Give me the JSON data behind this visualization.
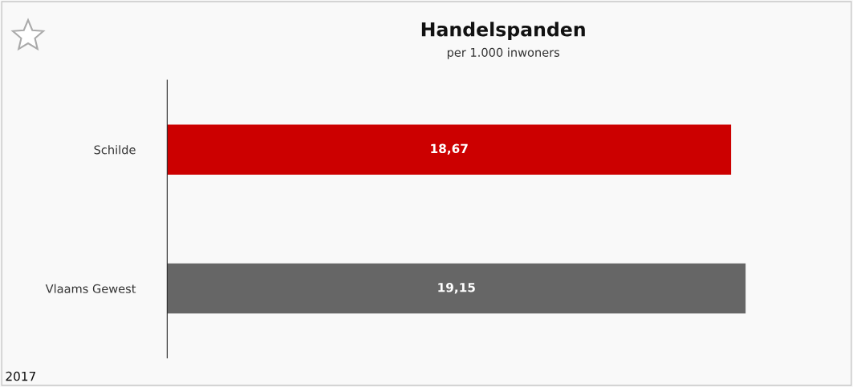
{
  "chart_data": {
    "type": "bar",
    "orientation": "horizontal",
    "title": "Handelspanden",
    "subtitle": "per 1.000 inwoners",
    "categories": [
      "Schilde",
      "Vlaams Gewest"
    ],
    "values": [
      18.67,
      19.15
    ],
    "colors": [
      "#cc0000",
      "#666666"
    ],
    "value_labels": [
      "18,67",
      "19,15"
    ],
    "tick_labels": "y",
    "grid": false,
    "legend": false,
    "annotations": [
      "2017"
    ]
  }
}
